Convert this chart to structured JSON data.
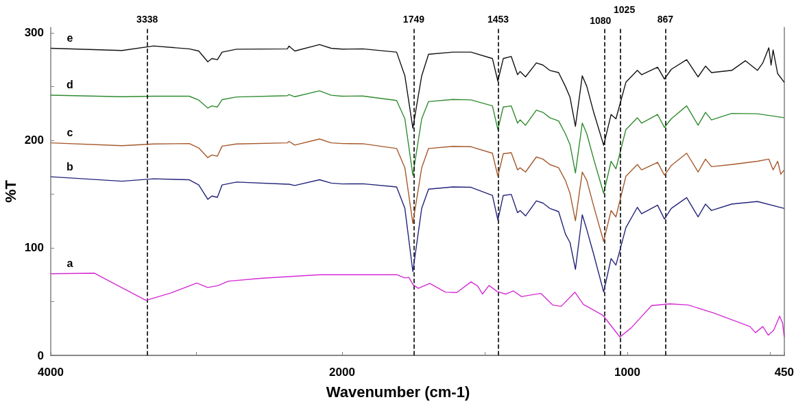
{
  "chart_data": [
    {
      "type": "line",
      "ylabel": "%T",
      "xlabel": "Wavenumber (cm-1)",
      "xlim": [
        4000,
        2000
      ],
      "xticks": [
        4000,
        {
          "value": 3000,
          "label": null
        },
        2000
      ],
      "ylim": [
        0,
        305
      ],
      "yticks": [
        0,
        {
          "value": 50,
          "label": null
        },
        100,
        {
          "value": 150,
          "label": null
        },
        200,
        {
          "value": 250,
          "label": null
        },
        300
      ],
      "marker": "none",
      "line_style": "solid",
      "x": [
        4000,
        3511,
        3294,
        3049,
        2984,
        2922,
        2894,
        2856,
        2824,
        2725,
        2376,
        2365,
        2325,
        2155,
        2075,
        2000
      ],
      "series": [
        {
          "name": "e",
          "color": "#111111",
          "values": [
            285.6,
            283.5,
            287.7,
            285,
            283,
            273,
            276,
            275,
            282,
            284.7,
            285,
            287.6,
            283,
            289,
            285.6,
            284.8
          ]
        },
        {
          "name": "d",
          "color": "#2e8b2e",
          "values": [
            242,
            240.5,
            241,
            241,
            237.4,
            230,
            232,
            231,
            237.8,
            240.3,
            241.5,
            242.5,
            240.5,
            246,
            241.9,
            241
          ]
        },
        {
          "name": "c",
          "color": "#a5582a",
          "values": [
            197.6,
            195,
            196.6,
            197,
            192.9,
            183.9,
            186.3,
            185.3,
            194.6,
            196.6,
            197.6,
            199,
            195.6,
            201.2,
            197.6,
            197
          ]
        },
        {
          "name": "b",
          "color": "#22227a",
          "values": [
            166.1,
            162,
            164.2,
            163.3,
            158.5,
            145.1,
            148.2,
            146.9,
            158.5,
            161.2,
            159.2,
            159.2,
            158,
            163.3,
            160.2,
            159.4
          ]
        },
        {
          "name": "a",
          "color": "#d42ad4",
          "x": [
            4000,
            3699,
            3539,
            3346,
            3176,
            2998,
            2922,
            2852,
            2781,
            2546,
            2155,
            2000
          ],
          "values": [
            75.9,
            76.4,
            64.9,
            51.2,
            58,
            67.2,
            63.1,
            64.9,
            69,
            71.8,
            75,
            75
          ]
        }
      ],
      "ref_lines": [
        {
          "axis": "x",
          "value": 3338,
          "label": "3338",
          "color": "#000000",
          "line_style": "dashed"
        }
      ]
    },
    {
      "type": "line",
      "xlim": [
        2000,
        450
      ],
      "xticks": [
        {
          "value": 1500,
          "label": null
        },
        1000,
        {
          "value": 500,
          "label": null
        },
        450
      ],
      "ylim": [
        0,
        305
      ],
      "tick_labels": "x",
      "marker": "none",
      "line_style": "solid",
      "x": [
        2000,
        1927,
        1809,
        1780,
        1752,
        1721,
        1697,
        1612,
        1548,
        1473,
        1454,
        1435,
        1407,
        1385,
        1376,
        1357,
        1319,
        1296,
        1272,
        1241,
        1217,
        1201,
        1182,
        1158,
        1142,
        1118,
        1083,
        1057,
        1040,
        1005,
        965,
        950,
        894,
        870,
        846,
        792,
        752,
        726,
        705,
        634,
        544,
        450
      ],
      "series": [
        {
          "color": "#111111",
          "x": [
            2000,
            1927,
            1809,
            1780,
            1752,
            1721,
            1697,
            1612,
            1548,
            1473,
            1454,
            1435,
            1407,
            1385,
            1376,
            1357,
            1319,
            1296,
            1272,
            1241,
            1217,
            1201,
            1182,
            1158,
            1142,
            1118,
            1083,
            1057,
            1040,
            1005,
            965,
            950,
            894,
            870,
            846,
            792,
            752,
            726,
            705,
            634,
            586,
            544,
            525,
            504,
            496,
            489,
            473,
            450
          ],
          "values": [
            284.8,
            285,
            282,
            260,
            211.3,
            260,
            280,
            282,
            282,
            276,
            255,
            276,
            278,
            261,
            264,
            259,
            272,
            270,
            265,
            263,
            250,
            240,
            213,
            260,
            250,
            226,
            195.4,
            224,
            220,
            254,
            265,
            261,
            268,
            257,
            266,
            275,
            259,
            269,
            263,
            265,
            274,
            265,
            272,
            286,
            270,
            284,
            262,
            254
          ]
        },
        {
          "color": "#2e8b2e",
          "values": [
            241,
            241.2,
            237,
            220,
            167.5,
            220,
            236,
            238,
            237.6,
            232,
            210,
            231,
            232,
            216,
            219,
            214,
            228,
            226,
            221,
            218,
            206,
            196,
            169.6,
            216,
            206,
            182.5,
            150.6,
            180.5,
            173.5,
            210,
            221,
            216,
            224,
            212,
            220,
            232,
            214,
            226,
            219,
            225,
            224.7,
            221
          ]
        },
        {
          "color": "#a5582a",
          "x": [
            2000,
            1927,
            1809,
            1780,
            1752,
            1721,
            1697,
            1612,
            1548,
            1473,
            1454,
            1435,
            1407,
            1385,
            1376,
            1357,
            1319,
            1296,
            1272,
            1241,
            1217,
            1201,
            1182,
            1158,
            1142,
            1118,
            1083,
            1057,
            1040,
            1005,
            965,
            950,
            894,
            870,
            846,
            792,
            752,
            726,
            705,
            634,
            544,
            504,
            489,
            473,
            462,
            450
          ],
          "values": [
            197,
            196.8,
            192.4,
            174.5,
            122.8,
            174.5,
            192.4,
            194.4,
            194,
            188,
            166.6,
            187.5,
            188.5,
            172.5,
            174.5,
            170.5,
            184.5,
            182.5,
            177.5,
            174.5,
            162.6,
            150.6,
            125.2,
            170.5,
            162.6,
            138.7,
            105.9,
            134.7,
            128.8,
            166.6,
            177.5,
            172.5,
            179.5,
            167.6,
            176.5,
            188,
            170.5,
            182.5,
            175.5,
            177.5,
            180.5,
            182.5,
            172.5,
            180.5,
            168.5,
            172.5
          ]
        },
        {
          "color": "#22227a",
          "values": [
            159.4,
            159.6,
            156.6,
            136.7,
            78,
            136.7,
            154.6,
            156.6,
            156.3,
            148.7,
            125.8,
            148.7,
            149.7,
            132.7,
            134.7,
            129.7,
            143.7,
            141.7,
            136.7,
            133.7,
            112.8,
            104.9,
            80,
            130.7,
            116.8,
            93.9,
            59,
            90,
            84,
            118.8,
            137.7,
            131.7,
            139.7,
            126.8,
            136.7,
            146.7,
            128.8,
            140.7,
            134.7,
            140.7,
            143.1,
            136.7
          ]
        },
        {
          "color": "#d42ad4",
          "x": [
            2000,
            1927,
            1809,
            1780,
            1766,
            1751,
            1733,
            1693,
            1638,
            1598,
            1548,
            1525,
            1508,
            1485,
            1456,
            1426,
            1400,
            1371,
            1303,
            1262,
            1232,
            1184,
            1154,
            1085,
            1026,
            986,
            915,
            851,
            787,
            697,
            570,
            551,
            525,
            506,
            487,
            466,
            456,
            450
          ],
          "values": [
            75,
            75,
            75,
            72,
            72.5,
            65.7,
            62.3,
            66.9,
            58.8,
            58.4,
            68.4,
            64.5,
            57,
            65,
            59.3,
            57,
            60,
            54.7,
            57.7,
            46.9,
            45.6,
            58.8,
            47.4,
            37.1,
            17,
            25.7,
            46.3,
            47.9,
            46.9,
            39.4,
            26.8,
            21.1,
            26.8,
            18.8,
            23.4,
            36.4,
            30.2,
            17.3
          ]
        }
      ],
      "ref_lines": [
        {
          "axis": "x",
          "value": 1749,
          "label": "1749",
          "color": "#000000",
          "line_style": "dashed"
        },
        {
          "axis": "x",
          "value": 1453,
          "label": "1453",
          "color": "#000000",
          "line_style": "dashed"
        },
        {
          "axis": "x",
          "value": 1080,
          "label": "1080",
          "color": "#000000",
          "line_style": "dashed"
        },
        {
          "axis": "x",
          "value": 1025,
          "label": "1025",
          "color": "#000000",
          "line_style": "dashed"
        },
        {
          "axis": "x",
          "value": 867,
          "label": "867",
          "color": "#000000",
          "line_style": "dashed"
        }
      ]
    }
  ]
}
